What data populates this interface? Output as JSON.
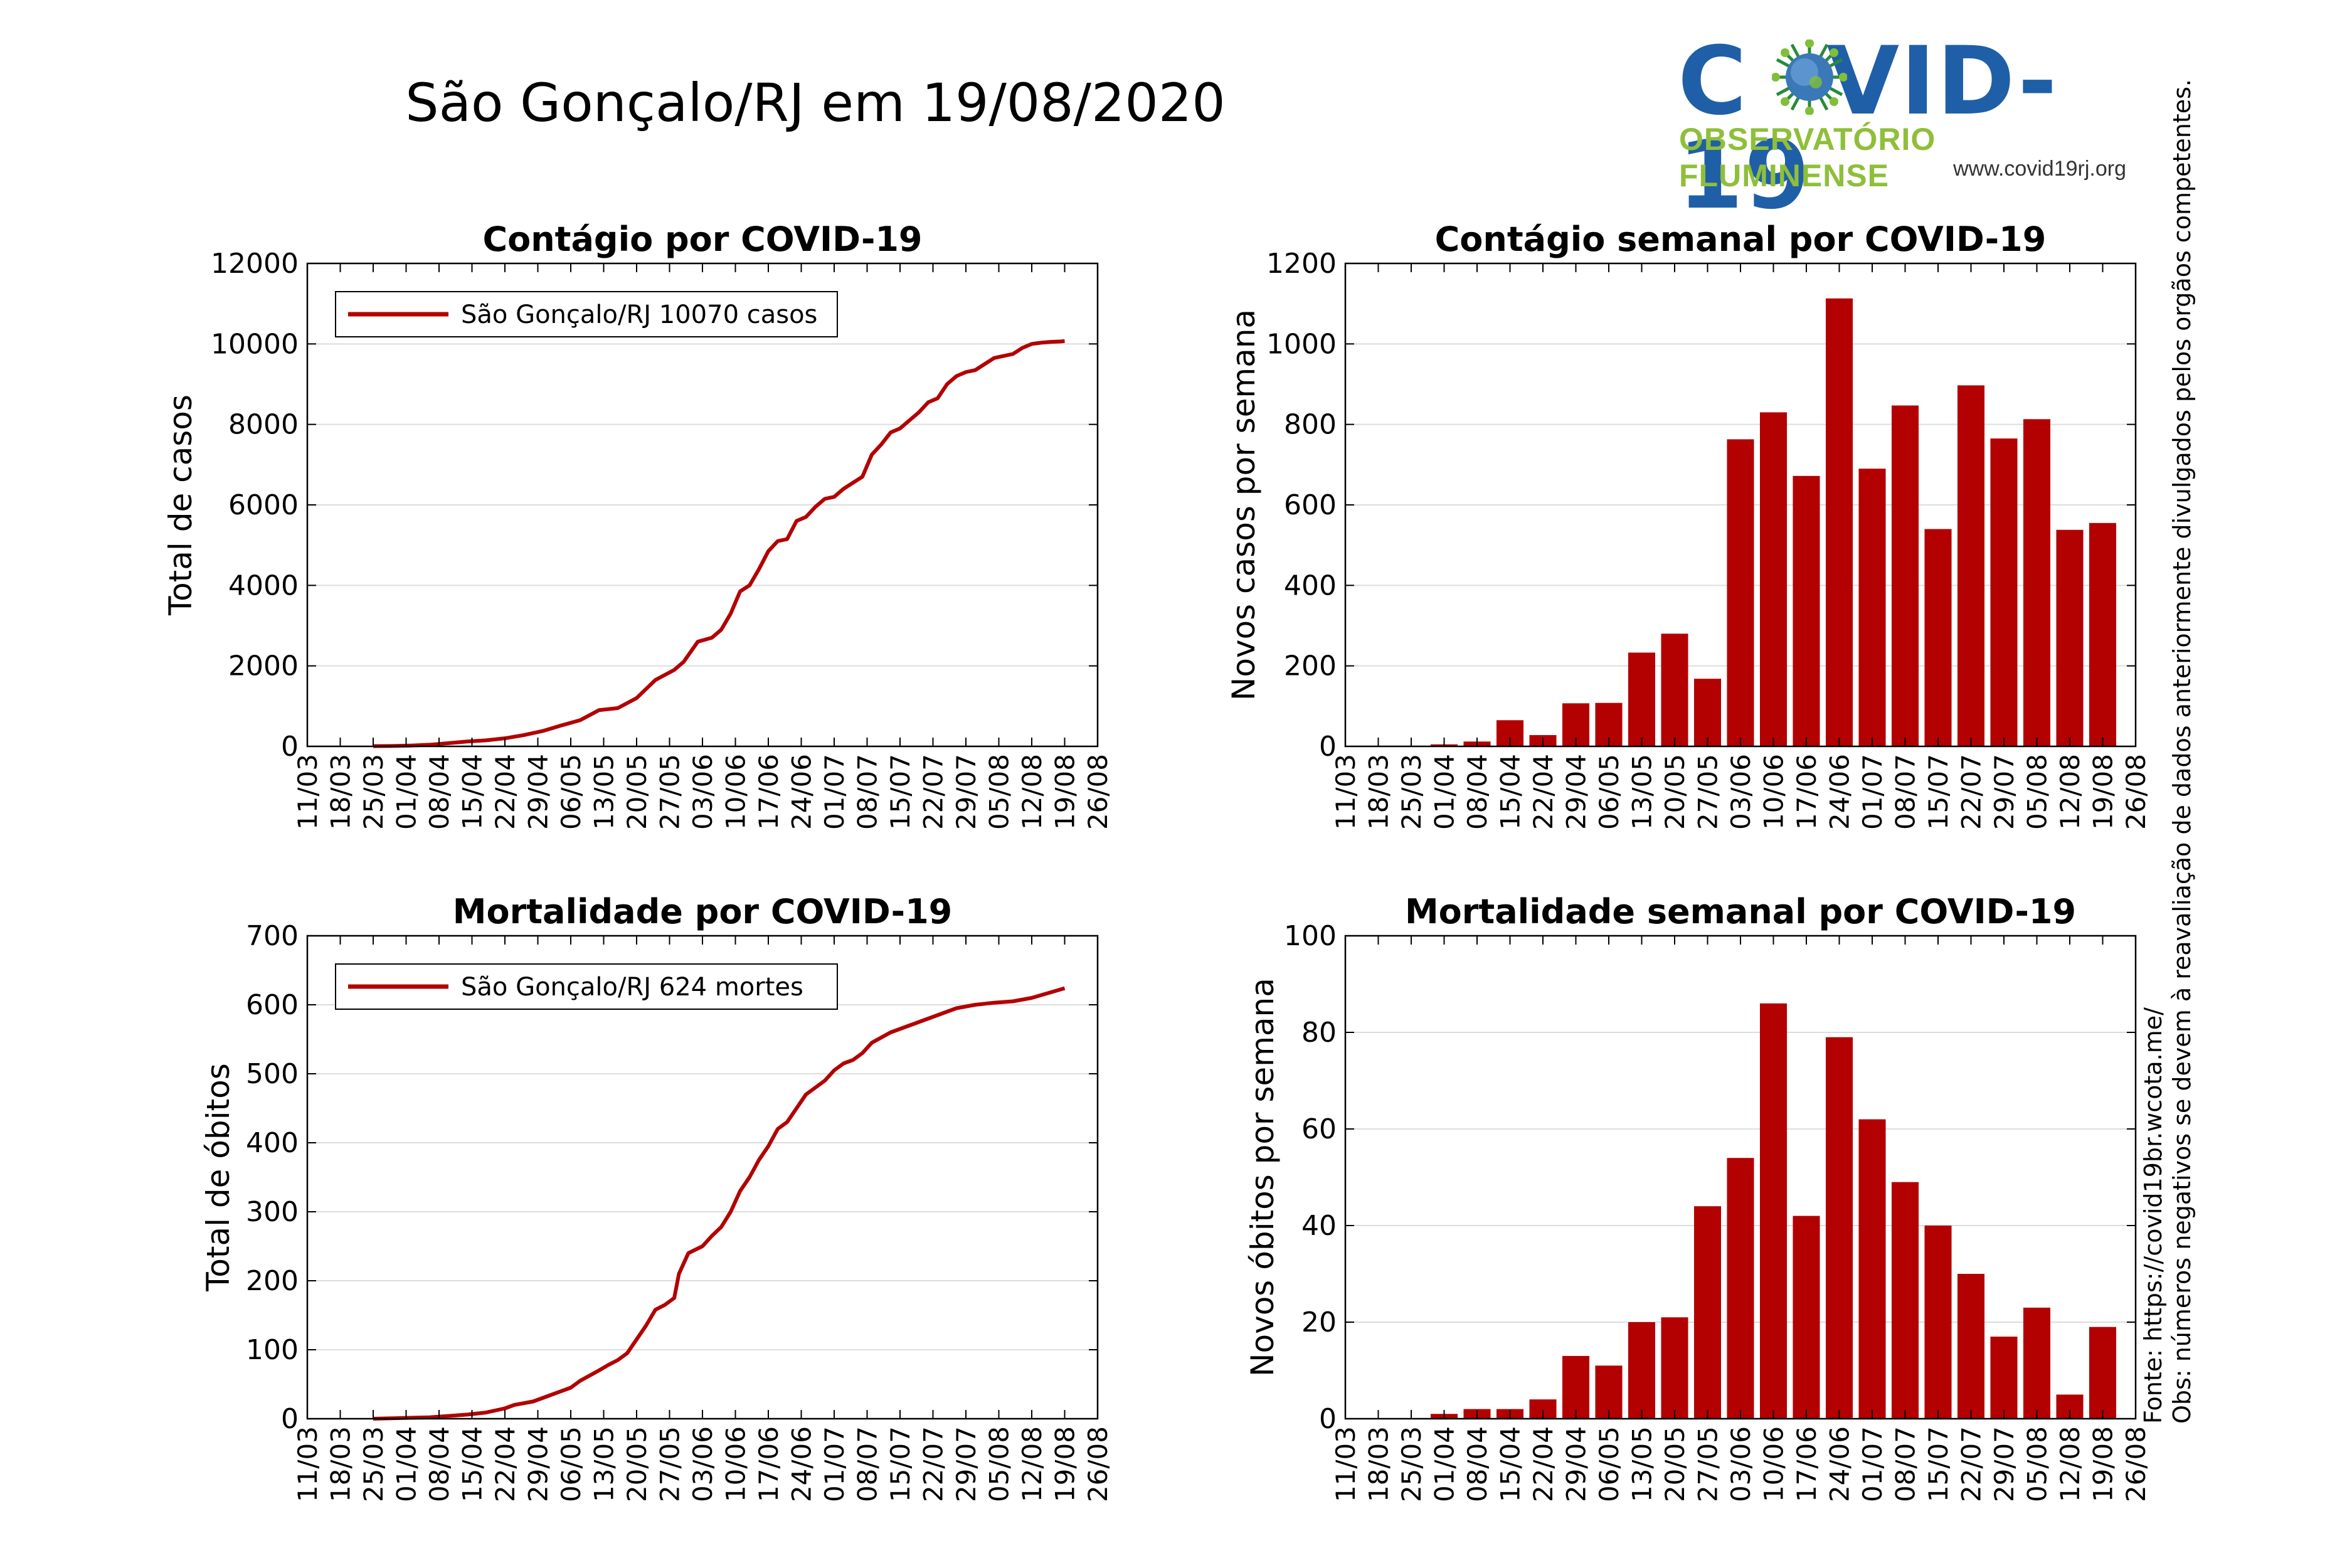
{
  "title": "São Gonçalo/RJ em 19/08/2020",
  "logo": {
    "title_left": "C",
    "title_right": "VID-19",
    "subtitle": "OBSERVATÓRIO FLUMINENSE",
    "url": "www.covid19rj.org"
  },
  "notes": {
    "source": "Fonte: https://covid19br.wcota.me/",
    "obs": "Obs: números negativos se devem à reavaliação de dados anteriormente divulgados pelos orgãos competentes."
  },
  "colors": {
    "series": "#b30000",
    "grid": "#dddddd"
  },
  "chart_data": [
    {
      "type": "line",
      "title": "Contágio por COVID-19",
      "xlabel": "",
      "ylabel": "Total de casos",
      "ylim": [
        0,
        12000
      ],
      "yticks": [
        0,
        2000,
        4000,
        6000,
        8000,
        10000,
        12000
      ],
      "xticks": [
        "11/03",
        "18/03",
        "25/03",
        "01/04",
        "08/04",
        "15/04",
        "22/04",
        "29/04",
        "06/05",
        "13/05",
        "20/05",
        "27/05",
        "03/06",
        "10/06",
        "17/06",
        "24/06",
        "01/07",
        "08/07",
        "15/07",
        "22/07",
        "29/07",
        "05/08",
        "12/08",
        "19/08",
        "26/08"
      ],
      "grid": true,
      "legend": "top-left",
      "series": [
        {
          "name": "São Gonçalo/RJ  10070 casos",
          "x": [
            14,
            18,
            22,
            26,
            30,
            34,
            38,
            42,
            46,
            50,
            54,
            58,
            62,
            66,
            70,
            74,
            78,
            80,
            83,
            86,
            88,
            90,
            92,
            94,
            96,
            98,
            100,
            102,
            104,
            106,
            108,
            110,
            112,
            114,
            116,
            118,
            120,
            122,
            124,
            126,
            128,
            130,
            132,
            134,
            136,
            138,
            140,
            142,
            144,
            146,
            148,
            150,
            152,
            154,
            156,
            158,
            160,
            161
          ],
          "y": [
            5,
            10,
            20,
            40,
            80,
            120,
            150,
            200,
            280,
            380,
            520,
            650,
            900,
            950,
            1200,
            1650,
            1900,
            2100,
            2600,
            2700,
            2900,
            3300,
            3850,
            4000,
            4400,
            4850,
            5100,
            5150,
            5600,
            5700,
            5950,
            6150,
            6200,
            6400,
            6550,
            6700,
            7250,
            7500,
            7800,
            7900,
            8100,
            8300,
            8550,
            8650,
            9000,
            9200,
            9300,
            9350,
            9500,
            9650,
            9700,
            9750,
            9900,
            10000,
            10030,
            10050,
            10060,
            10070
          ]
        }
      ]
    },
    {
      "type": "bar",
      "title": "Contágio semanal por COVID-19",
      "xlabel": "",
      "ylabel": "Novos casos por semana",
      "ylim": [
        0,
        1200
      ],
      "yticks": [
        0,
        200,
        400,
        600,
        800,
        1000,
        1200
      ],
      "xticks": [
        "11/03",
        "18/03",
        "25/03",
        "01/04",
        "08/04",
        "15/04",
        "22/04",
        "29/04",
        "06/05",
        "13/05",
        "20/05",
        "27/05",
        "03/06",
        "10/06",
        "17/06",
        "24/06",
        "01/07",
        "08/07",
        "15/07",
        "22/07",
        "29/07",
        "05/08",
        "12/08",
        "19/08",
        "26/08"
      ],
      "grid": true,
      "categories": [
        "18/03",
        "25/03",
        "01/04",
        "08/04",
        "15/04",
        "22/04",
        "29/04",
        "06/05",
        "13/05",
        "20/05",
        "27/05",
        "03/06",
        "10/06",
        "17/06",
        "24/06",
        "01/07",
        "08/07",
        "15/07",
        "22/07",
        "29/07",
        "05/08",
        "12/08",
        "19/08"
      ],
      "values": [
        0,
        0,
        5,
        12,
        65,
        28,
        107,
        108,
        233,
        280,
        168,
        763,
        830,
        672,
        1113,
        690,
        847,
        540,
        897,
        765,
        813,
        538,
        555
      ]
    },
    {
      "type": "line",
      "title": "Mortalidade por COVID-19",
      "xlabel": "",
      "ylabel": "Total de óbitos",
      "ylim": [
        0,
        700
      ],
      "yticks": [
        0,
        100,
        200,
        300,
        400,
        500,
        600,
        700
      ],
      "xticks": [
        "11/03",
        "18/03",
        "25/03",
        "01/04",
        "08/04",
        "15/04",
        "22/04",
        "29/04",
        "06/05",
        "13/05",
        "20/05",
        "27/05",
        "03/06",
        "10/06",
        "17/06",
        "24/06",
        "01/07",
        "08/07",
        "15/07",
        "22/07",
        "29/07",
        "05/08",
        "12/08",
        "19/08",
        "26/08"
      ],
      "grid": true,
      "legend": "top-left",
      "series": [
        {
          "name": "São Gonçalo/RJ  624 mortes",
          "x": [
            14,
            20,
            26,
            30,
            34,
            38,
            42,
            44,
            48,
            52,
            56,
            58,
            62,
            64,
            66,
            68,
            70,
            72,
            74,
            76,
            78,
            79,
            81,
            84,
            86,
            88,
            90,
            92,
            94,
            96,
            98,
            100,
            102,
            104,
            106,
            108,
            110,
            112,
            114,
            116,
            118,
            120,
            124,
            128,
            132,
            134,
            138,
            142,
            146,
            150,
            154,
            158,
            161
          ],
          "y": [
            0,
            1,
            2,
            4,
            6,
            9,
            15,
            20,
            25,
            35,
            45,
            55,
            70,
            78,
            85,
            95,
            115,
            135,
            158,
            165,
            175,
            210,
            240,
            250,
            265,
            278,
            300,
            330,
            350,
            375,
            395,
            420,
            430,
            450,
            470,
            480,
            490,
            505,
            515,
            520,
            530,
            545,
            560,
            570,
            580,
            585,
            595,
            600,
            603,
            605,
            610,
            618,
            624
          ]
        }
      ]
    },
    {
      "type": "bar",
      "title": "Mortalidade semanal por COVID-19",
      "xlabel": "",
      "ylabel": "Novos óbitos por semana",
      "ylim": [
        0,
        100
      ],
      "yticks": [
        0,
        20,
        40,
        60,
        80,
        100
      ],
      "xticks": [
        "11/03",
        "18/03",
        "25/03",
        "01/04",
        "08/04",
        "15/04",
        "22/04",
        "29/04",
        "06/05",
        "13/05",
        "20/05",
        "27/05",
        "03/06",
        "10/06",
        "17/06",
        "24/06",
        "01/07",
        "08/07",
        "15/07",
        "22/07",
        "29/07",
        "05/08",
        "12/08",
        "19/08",
        "26/08"
      ],
      "grid": true,
      "categories": [
        "18/03",
        "25/03",
        "01/04",
        "08/04",
        "15/04",
        "22/04",
        "29/04",
        "06/05",
        "13/05",
        "20/05",
        "27/05",
        "03/06",
        "10/06",
        "17/06",
        "24/06",
        "01/07",
        "08/07",
        "15/07",
        "22/07",
        "29/07",
        "05/08",
        "12/08",
        "19/08"
      ],
      "values": [
        0,
        0,
        1,
        2,
        2,
        4,
        13,
        11,
        20,
        21,
        44,
        54,
        86,
        42,
        79,
        62,
        49,
        40,
        30,
        17,
        23,
        5,
        19
      ]
    }
  ]
}
